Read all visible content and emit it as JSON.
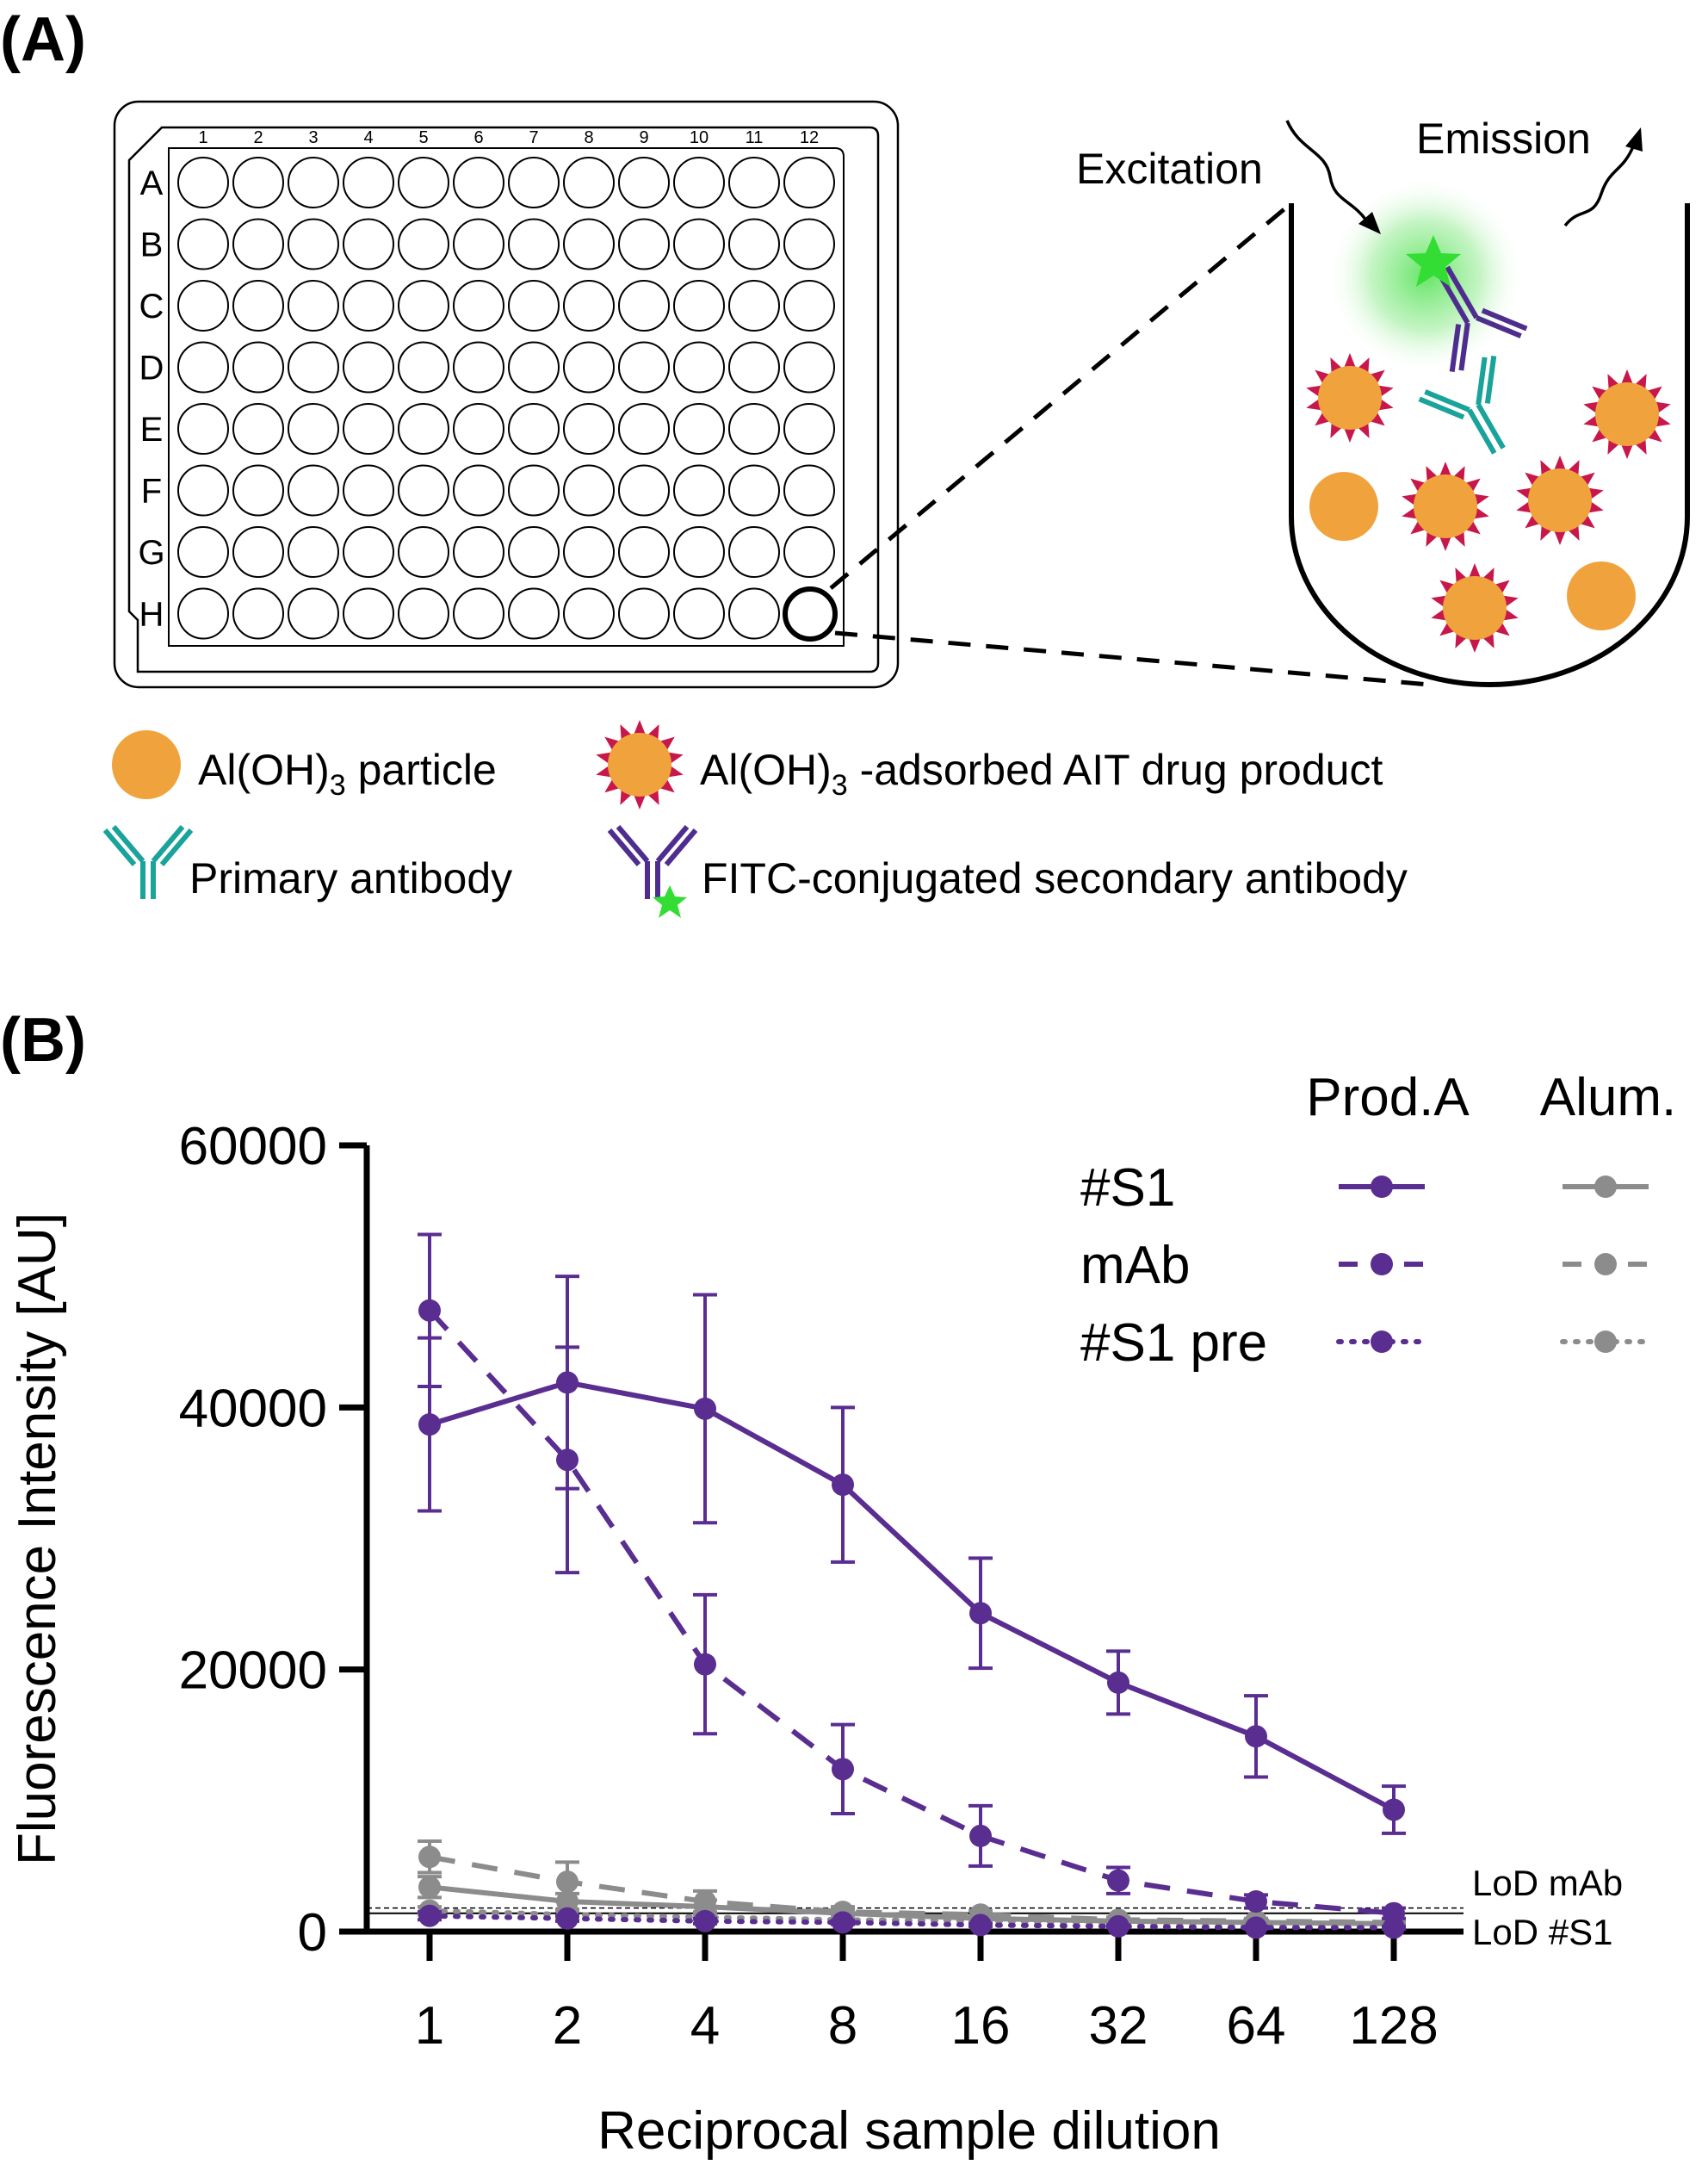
{
  "panel_a": {
    "label": "(A)",
    "plate": {
      "columns": [
        "1",
        "2",
        "3",
        "4",
        "5",
        "6",
        "7",
        "8",
        "9",
        "10",
        "11",
        "12"
      ],
      "rows": [
        "A",
        "B",
        "C",
        "D",
        "E",
        "F",
        "G",
        "H"
      ]
    },
    "excitation_label": "Excitation",
    "emission_label": "Emission",
    "legend": {
      "particle": "Al(OH)",
      "particle_sub": "3",
      "particle_suffix": " particle",
      "adsorbed": "Al(OH)",
      "adsorbed_sub": "3",
      "adsorbed_suffix": " -adsorbed AIT drug product",
      "primary": "Primary antibody",
      "secondary": "FITC-conjugated secondary antibody"
    },
    "colors": {
      "particle": "#f0a33d",
      "spikes": "#c8174a",
      "primary_antibody": "#1aa39a",
      "secondary_antibody": "#4f2d8f",
      "fitc": "#33dd33"
    }
  },
  "panel_b": {
    "label": "(B)",
    "lod_labels": [
      "LoD mAb",
      "LoD #S1"
    ],
    "legend_headers": [
      "Prod.A",
      "Alum."
    ],
    "legend_rows": [
      "#S1",
      "mAb",
      "#S1 pre"
    ]
  },
  "chart_data": {
    "type": "line",
    "xlabel": "Reciprocal sample dilution",
    "ylabel": "Fluorescence Intensity [AU]",
    "x": [
      1,
      2,
      4,
      8,
      16,
      32,
      64,
      128
    ],
    "x_scale": "log2",
    "ylim": [
      0,
      60000
    ],
    "yticks": [
      0,
      20000,
      40000,
      60000
    ],
    "legend_placement": "top-right",
    "colors": {
      "prod_a": "#5a2d91",
      "alum": "#8c8c8c"
    },
    "lod": {
      "LoD mAb": 1800,
      "LoD #S1": 1400
    },
    "series": [
      {
        "name": "#S1",
        "group": "Prod.A",
        "style": "solid",
        "values": [
          38700,
          41900,
          39900,
          34100,
          24300,
          19000,
          14900,
          9300
        ],
        "errors": [
          6600,
          8100,
          8700,
          5900,
          4200,
          2400,
          3100,
          1800
        ]
      },
      {
        "name": "mAb",
        "group": "Prod.A",
        "style": "dashed",
        "values": [
          47400,
          36000,
          20400,
          12400,
          7300,
          3900,
          2300,
          1400
        ],
        "errors": [
          5800,
          8600,
          5300,
          3400,
          2300,
          1000,
          500,
          400
        ]
      },
      {
        "name": "#S1 pre",
        "group": "Prod.A",
        "style": "dotted",
        "values": [
          1200,
          1000,
          800,
          700,
          500,
          400,
          300,
          300
        ],
        "errors": [
          300,
          200,
          200,
          150,
          100,
          100,
          100,
          100
        ]
      },
      {
        "name": "#S1",
        "group": "Alum.",
        "style": "solid",
        "values": [
          3400,
          2300,
          1900,
          1400,
          1000,
          800,
          700,
          600
        ],
        "errors": [
          800,
          600,
          500,
          300,
          200,
          200,
          200,
          200
        ]
      },
      {
        "name": "mAb",
        "group": "Alum.",
        "style": "dashed",
        "values": [
          5700,
          3800,
          2300,
          1500,
          1300,
          900,
          800,
          700
        ],
        "errors": [
          1200,
          1500,
          800,
          400,
          300,
          200,
          200,
          200
        ]
      },
      {
        "name": "#S1 pre",
        "group": "Alum.",
        "style": "dotted",
        "values": [
          1600,
          1300,
          1100,
          900,
          800,
          700,
          600,
          500
        ],
        "errors": [
          300,
          300,
          200,
          200,
          200,
          100,
          100,
          100
        ]
      }
    ]
  }
}
